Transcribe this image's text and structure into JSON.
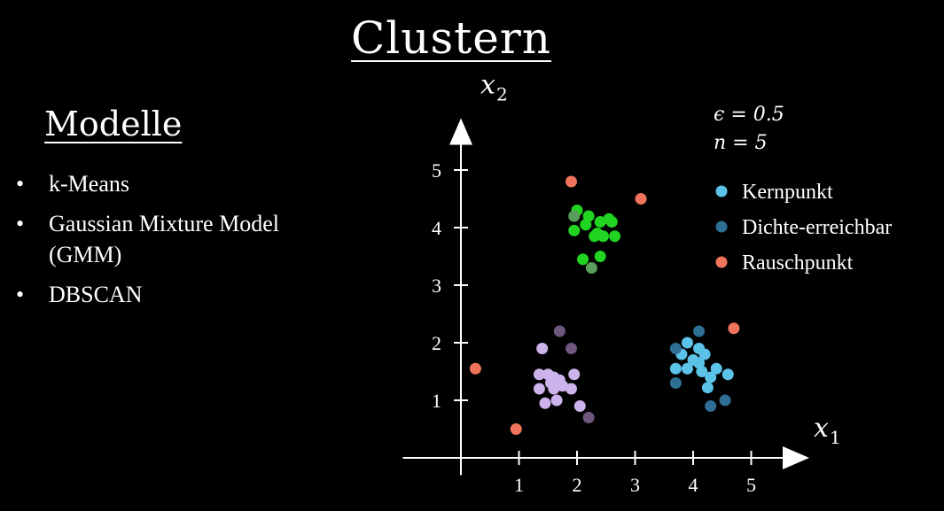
{
  "title": "Clustern",
  "sidebar": {
    "heading": "Modelle",
    "bullet": "•",
    "items": [
      {
        "label": "k-Means"
      },
      {
        "label": "Gaussian Mixture Model (GMM)"
      },
      {
        "label": "DBSCAN"
      }
    ]
  },
  "chart_data": {
    "type": "scatter",
    "title": "",
    "xlabel": {
      "var": "x",
      "sub": "1"
    },
    "ylabel": {
      "var": "x",
      "sub": "2"
    },
    "xlim": [
      -1,
      6.0
    ],
    "ylim": [
      -0.3,
      5.9
    ],
    "xticks": [
      1,
      2,
      3,
      4,
      5
    ],
    "yticks": [
      1,
      2,
      3,
      4,
      5
    ],
    "grid": false,
    "legend_position": "top-right",
    "parameters": [
      {
        "symbol": "ϵ",
        "value": "0.5"
      },
      {
        "symbol": "n",
        "value": "5"
      }
    ],
    "series": [
      {
        "name": "Kernpunkt",
        "color": "#5bc3e8",
        "points": [
          [
            3.9,
            2.0
          ],
          [
            4.1,
            1.9
          ],
          [
            4.2,
            1.8
          ],
          [
            3.8,
            1.8
          ],
          [
            4.0,
            1.7
          ],
          [
            4.1,
            1.65
          ],
          [
            4.4,
            1.55
          ],
          [
            4.6,
            1.45
          ],
          [
            3.7,
            1.55
          ],
          [
            3.9,
            1.55
          ],
          [
            4.3,
            1.4
          ],
          [
            4.15,
            1.5
          ],
          [
            4.25,
            1.22
          ]
        ]
      },
      {
        "name": "Dichte-erreichbar",
        "color": "#2f6f93",
        "points": [
          [
            4.1,
            2.2
          ],
          [
            3.7,
            1.9
          ],
          [
            3.7,
            1.3
          ],
          [
            4.3,
            0.9
          ],
          [
            4.55,
            1.0
          ]
        ]
      },
      {
        "name": "Rauschpunkt",
        "color": "#f0745c",
        "points": [
          [
            1.9,
            4.8
          ],
          [
            3.1,
            4.5
          ],
          [
            4.7,
            2.25
          ],
          [
            0.25,
            1.55
          ],
          [
            0.95,
            0.5
          ]
        ]
      },
      {
        "name": "",
        "color": "#22d422",
        "points": [
          [
            2.0,
            4.3
          ],
          [
            2.2,
            4.2
          ],
          [
            2.4,
            4.1
          ],
          [
            2.55,
            4.15
          ],
          [
            2.6,
            4.1
          ],
          [
            2.15,
            4.05
          ],
          [
            1.95,
            3.95
          ],
          [
            2.35,
            3.9
          ],
          [
            2.45,
            3.85
          ],
          [
            2.65,
            3.85
          ],
          [
            2.3,
            3.85
          ],
          [
            2.4,
            3.5
          ],
          [
            2.1,
            3.45
          ]
        ]
      },
      {
        "name": "",
        "color": "#5a9d5a",
        "points": [
          [
            1.95,
            4.2
          ],
          [
            2.25,
            3.3
          ]
        ]
      },
      {
        "name": "",
        "color": "#cdb3ec",
        "points": [
          [
            1.4,
            1.9
          ],
          [
            1.35,
            1.45
          ],
          [
            1.5,
            1.45
          ],
          [
            1.6,
            1.4
          ],
          [
            1.7,
            1.35
          ],
          [
            1.95,
            1.45
          ],
          [
            1.55,
            1.3
          ],
          [
            1.75,
            1.25
          ],
          [
            1.35,
            1.2
          ],
          [
            1.6,
            1.2
          ],
          [
            1.9,
            1.2
          ],
          [
            1.45,
            0.95
          ],
          [
            1.65,
            1.0
          ],
          [
            2.05,
            0.9
          ]
        ]
      },
      {
        "name": "",
        "color": "#6e567f",
        "points": [
          [
            1.7,
            2.2
          ],
          [
            1.9,
            1.9
          ],
          [
            2.2,
            0.7
          ]
        ]
      }
    ]
  }
}
